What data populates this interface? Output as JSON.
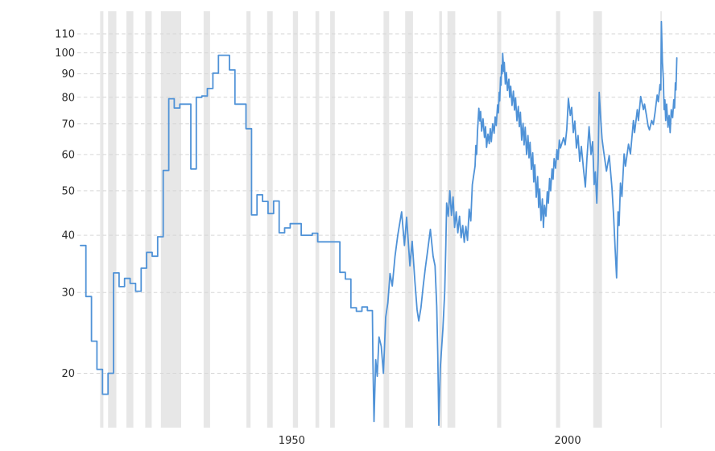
{
  "chart": {
    "background": "#ffffff",
    "line_color": "#4f92d7",
    "recession_band_color": "#e7e7e7",
    "gridline_color": "#d6d6d6",
    "tick_label_color": "#2b2b2b",
    "y_tick_labels": [
      "110",
      "100",
      "90",
      "80",
      "70",
      "60",
      "50",
      "40",
      "30",
      "20"
    ],
    "x_tick_labels": [
      "1950",
      "2000"
    ]
  },
  "chart_data": {
    "type": "line",
    "title": "",
    "xlabel": "",
    "ylabel": "",
    "grid": "dashed-horizontal",
    "legend": "none",
    "x_axis": {
      "ticks": [
        1950,
        2000
      ],
      "range": [
        1914.6,
        2025.5
      ]
    },
    "y_axis": {
      "scale": "log",
      "ticks": [
        110,
        100,
        90,
        80,
        70,
        60,
        50,
        40,
        30,
        20
      ],
      "range": [
        14.5,
        120
      ]
    },
    "recession_bands": [
      [
        1918.58,
        1919.17
      ],
      [
        1920.0,
        1921.5
      ],
      [
        1923.33,
        1924.58
      ],
      [
        1926.75,
        1927.92
      ],
      [
        1929.58,
        1933.25
      ],
      [
        1937.33,
        1938.5
      ],
      [
        1945.08,
        1945.83
      ],
      [
        1948.83,
        1949.83
      ],
      [
        1953.5,
        1954.42
      ],
      [
        1957.58,
        1958.25
      ],
      [
        1960.25,
        1961.08
      ],
      [
        1969.92,
        1970.92
      ],
      [
        1973.83,
        1975.25
      ],
      [
        1980.0,
        1980.5
      ],
      [
        1981.5,
        1982.92
      ],
      [
        1990.5,
        1991.25
      ],
      [
        2001.17,
        2001.92
      ],
      [
        2007.92,
        2009.5
      ],
      [
        2020.08,
        2020.33
      ]
    ],
    "series": [
      {
        "name": "series-1",
        "step_render_until": 1967.9,
        "annual_points": [
          [
            1915,
            38
          ],
          [
            1916,
            29.4
          ],
          [
            1917,
            23.5
          ],
          [
            1918,
            20.4
          ],
          [
            1919,
            18
          ],
          [
            1920,
            20
          ],
          [
            1921,
            33.1
          ],
          [
            1922,
            30.9
          ],
          [
            1923,
            32.2
          ],
          [
            1924,
            31.4
          ],
          [
            1925,
            30.2
          ],
          [
            1926,
            33.9
          ],
          [
            1927,
            36.7
          ],
          [
            1928,
            36
          ],
          [
            1929,
            39.7
          ],
          [
            1930,
            55.4
          ],
          [
            1931,
            79.4
          ],
          [
            1932,
            75.8
          ],
          [
            1933,
            77.3
          ],
          [
            1934,
            77.3
          ],
          [
            1935,
            55.8
          ],
          [
            1936,
            80
          ],
          [
            1937,
            80.5
          ],
          [
            1938,
            83.6
          ],
          [
            1939,
            90.3
          ],
          [
            1940,
            98.8
          ],
          [
            1941,
            98.8
          ],
          [
            1942,
            91.8
          ],
          [
            1943,
            77.3
          ],
          [
            1944,
            77.3
          ],
          [
            1945,
            68.3
          ],
          [
            1946,
            44.3
          ],
          [
            1947,
            49
          ],
          [
            1948,
            47.4
          ],
          [
            1949,
            44.6
          ],
          [
            1950,
            47.5
          ],
          [
            1951,
            40.5
          ],
          [
            1952,
            41.5
          ],
          [
            1953,
            42.4
          ],
          [
            1954,
            42.4
          ],
          [
            1955,
            40
          ],
          [
            1956,
            40
          ],
          [
            1957,
            40.4
          ],
          [
            1958,
            38.7
          ],
          [
            1959,
            38.7
          ],
          [
            1960,
            38.7
          ],
          [
            1961,
            38.7
          ],
          [
            1962,
            33.2
          ],
          [
            1963,
            32.1
          ],
          [
            1964,
            27.8
          ],
          [
            1965,
            27.3
          ],
          [
            1966,
            27.9
          ],
          [
            1967,
            27.4
          ]
        ],
        "fine_points": [
          [
            1967.9,
            27.4
          ],
          [
            1968.0,
            21.0
          ],
          [
            1968.19,
            15.7
          ],
          [
            1968.5,
            21.4
          ],
          [
            1968.78,
            19.7
          ],
          [
            1969.1,
            24.0
          ],
          [
            1969.5,
            22.9
          ],
          [
            1969.9,
            20.0
          ],
          [
            1970.3,
            26.5
          ],
          [
            1970.7,
            28.5
          ],
          [
            1971.1,
            33.0
          ],
          [
            1971.5,
            31.0
          ],
          [
            1972.0,
            36.0
          ],
          [
            1972.5,
            40.0
          ],
          [
            1973.2,
            45.0
          ],
          [
            1973.7,
            38.0
          ],
          [
            1974.1,
            43.8
          ],
          [
            1974.7,
            34.3
          ],
          [
            1975.1,
            38.8
          ],
          [
            1975.6,
            31.7
          ],
          [
            1976.0,
            27.5
          ],
          [
            1976.3,
            26.0
          ],
          [
            1976.7,
            27.8
          ],
          [
            1977.1,
            31.0
          ],
          [
            1977.5,
            34.0
          ],
          [
            1977.9,
            37.0
          ],
          [
            1978.4,
            41.2
          ],
          [
            1978.9,
            36.0
          ],
          [
            1979.25,
            34.3
          ],
          [
            1979.55,
            28.0
          ],
          [
            1979.75,
            22.0
          ],
          [
            1979.93,
            15.4
          ],
          [
            1980.2,
            20.5
          ],
          [
            1980.66,
            24.9
          ],
          [
            1981.0,
            30.0
          ],
          [
            1981.2,
            38.0
          ],
          [
            1981.35,
            47.0
          ],
          [
            1981.64,
            44.0
          ],
          [
            1981.93,
            50.0
          ],
          [
            1982.22,
            44.2
          ],
          [
            1982.51,
            48.5
          ],
          [
            1982.8,
            41.6
          ],
          [
            1983.09,
            45.0
          ],
          [
            1983.38,
            40.5
          ],
          [
            1983.68,
            44.0
          ],
          [
            1983.97,
            39.5
          ],
          [
            1984.26,
            42.0
          ],
          [
            1984.55,
            38.6
          ],
          [
            1984.84,
            41.8
          ],
          [
            1985.13,
            39.0
          ],
          [
            1985.43,
            45.6
          ],
          [
            1985.72,
            43.0
          ],
          [
            1986.01,
            51.6
          ],
          [
            1986.5,
            56.6
          ],
          [
            1986.64,
            62.8
          ],
          [
            1986.79,
            60.0
          ],
          [
            1986.93,
            67.2
          ],
          [
            1987.18,
            75.7
          ],
          [
            1987.37,
            71.0
          ],
          [
            1987.51,
            74.5
          ],
          [
            1987.7,
            67.5
          ],
          [
            1987.95,
            71.8
          ],
          [
            1988.2,
            65.4
          ],
          [
            1988.39,
            69.0
          ],
          [
            1988.58,
            62.2
          ],
          [
            1988.83,
            66.5
          ],
          [
            1989.07,
            63.4
          ],
          [
            1989.26,
            68.3
          ],
          [
            1989.45,
            64.0
          ],
          [
            1989.7,
            70.0
          ],
          [
            1989.95,
            66.8
          ],
          [
            1990.14,
            72.5
          ],
          [
            1990.33,
            69.4
          ],
          [
            1990.58,
            77.0
          ],
          [
            1990.73,
            74.0
          ],
          [
            1990.87,
            82.0
          ],
          [
            1990.97,
            78.5
          ],
          [
            1991.12,
            88.5
          ],
          [
            1991.21,
            85.0
          ],
          [
            1991.31,
            94.0
          ],
          [
            1991.41,
            90.0
          ],
          [
            1991.5,
            99.7
          ],
          [
            1991.7,
            91.0
          ],
          [
            1991.79,
            95.3
          ],
          [
            1991.99,
            85.5
          ],
          [
            1992.18,
            90.6
          ],
          [
            1992.37,
            82.8
          ],
          [
            1992.62,
            87.6
          ],
          [
            1992.77,
            80.0
          ],
          [
            1992.96,
            84.5
          ],
          [
            1993.2,
            76.8
          ],
          [
            1993.45,
            82.5
          ],
          [
            1993.64,
            75.0
          ],
          [
            1993.83,
            79.8
          ],
          [
            1994.08,
            71.1
          ],
          [
            1994.33,
            76.4
          ],
          [
            1994.52,
            69.0
          ],
          [
            1994.71,
            74.2
          ],
          [
            1994.95,
            64.5
          ],
          [
            1995.2,
            70.2
          ],
          [
            1995.39,
            63.0
          ],
          [
            1995.58,
            68.8
          ],
          [
            1995.83,
            60.0
          ],
          [
            1996.08,
            66.0
          ],
          [
            1996.27,
            59.0
          ],
          [
            1996.46,
            63.8
          ],
          [
            1996.71,
            55.7
          ],
          [
            1996.95,
            60.5
          ],
          [
            1997.14,
            52.3
          ],
          [
            1997.33,
            57.0
          ],
          [
            1997.58,
            48.4
          ],
          [
            1997.83,
            53.7
          ],
          [
            1998.02,
            46.0
          ],
          [
            1998.21,
            50.5
          ],
          [
            1998.45,
            43.1
          ],
          [
            1998.7,
            48.0
          ],
          [
            1998.89,
            41.6
          ],
          [
            1999.08,
            46.5
          ],
          [
            1999.33,
            44.0
          ],
          [
            1999.58,
            49.8
          ],
          [
            1999.77,
            47.0
          ],
          [
            2000.01,
            53.2
          ],
          [
            2000.2,
            50.0
          ],
          [
            2000.45,
            55.8
          ],
          [
            2000.64,
            53.0
          ],
          [
            2000.83,
            58.8
          ],
          [
            2001.08,
            56.0
          ],
          [
            2001.33,
            61.5
          ],
          [
            2001.52,
            58.5
          ],
          [
            2001.77,
            64.5
          ],
          [
            2001.96,
            62.0
          ],
          [
            2002.54,
            65.3
          ],
          [
            2002.83,
            63.0
          ],
          [
            2003.12,
            68.0
          ],
          [
            2003.41,
            79.5
          ],
          [
            2003.75,
            73.0
          ],
          [
            2004.0,
            76.0
          ],
          [
            2004.29,
            67.0
          ],
          [
            2004.58,
            71.0
          ],
          [
            2004.87,
            62.0
          ],
          [
            2005.16,
            66.0
          ],
          [
            2005.46,
            58.0
          ],
          [
            2005.75,
            62.5
          ],
          [
            2006.18,
            55.3
          ],
          [
            2006.48,
            51.0
          ],
          [
            2006.77,
            59.0
          ],
          [
            2007.16,
            69.0
          ],
          [
            2007.5,
            60.0
          ],
          [
            2007.79,
            64.0
          ],
          [
            2008.08,
            51.6
          ],
          [
            2008.3,
            55.0
          ],
          [
            2008.55,
            47.0
          ],
          [
            2008.8,
            58.3
          ],
          [
            2009.0,
            82.0
          ],
          [
            2009.25,
            72.0
          ],
          [
            2009.5,
            65.0
          ],
          [
            2009.8,
            61.0
          ],
          [
            2010.3,
            55.2
          ],
          [
            2010.8,
            59.7
          ],
          [
            2011.3,
            50.8
          ],
          [
            2011.6,
            44.0
          ],
          [
            2011.9,
            37.0
          ],
          [
            2012.15,
            32.3
          ],
          [
            2012.4,
            45.0
          ],
          [
            2012.6,
            42.0
          ],
          [
            2012.85,
            52.0
          ],
          [
            2013.1,
            48.6
          ],
          [
            2013.5,
            60.2
          ],
          [
            2013.75,
            56.6
          ],
          [
            2014.3,
            63.2
          ],
          [
            2014.65,
            60.2
          ],
          [
            2015.2,
            71.2
          ],
          [
            2015.4,
            67.0
          ],
          [
            2015.9,
            75.2
          ],
          [
            2016.1,
            71.2
          ],
          [
            2016.5,
            80.3
          ],
          [
            2017.0,
            75.2
          ],
          [
            2017.2,
            77.3
          ],
          [
            2017.55,
            73.0
          ],
          [
            2017.85,
            69.3
          ],
          [
            2018.1,
            67.9
          ],
          [
            2018.5,
            71.2
          ],
          [
            2018.8,
            69.8
          ],
          [
            2019.1,
            74.0
          ],
          [
            2019.5,
            80.9
          ],
          [
            2019.7,
            78.2
          ],
          [
            2020.0,
            85.3
          ],
          [
            2020.15,
            83.0
          ],
          [
            2020.25,
            117.0
          ],
          [
            2020.45,
            95.3
          ],
          [
            2020.6,
            88.0
          ],
          [
            2020.75,
            75.2
          ],
          [
            2020.9,
            79.0
          ],
          [
            2021.05,
            71.2
          ],
          [
            2021.2,
            77.3
          ],
          [
            2021.45,
            68.8
          ],
          [
            2021.65,
            73.0
          ],
          [
            2021.85,
            67.0
          ],
          [
            2022.05,
            75.2
          ],
          [
            2022.3,
            72.2
          ],
          [
            2022.5,
            79.0
          ],
          [
            2022.65,
            75.8
          ],
          [
            2022.8,
            86.0
          ],
          [
            2022.9,
            83.0
          ],
          [
            2023.05,
            97.5
          ]
        ]
      }
    ]
  }
}
